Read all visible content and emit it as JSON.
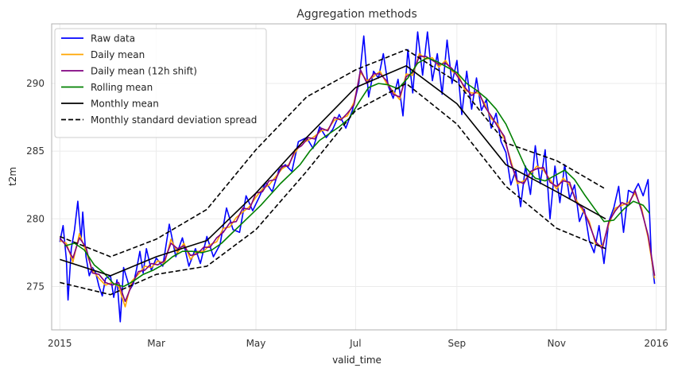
{
  "chart_data": {
    "type": "line",
    "title": "Aggregation methods",
    "xlabel": "valid_time",
    "ylabel": "t2m",
    "xlim": [
      "2014-12-27",
      "2016-01-07"
    ],
    "ylim": [
      271.8,
      294.4
    ],
    "x_ticks": [
      {
        "date": "2015-01-01",
        "label": "2015"
      },
      {
        "date": "2015-03-01",
        "label": "Mar"
      },
      {
        "date": "2015-05-01",
        "label": "May"
      },
      {
        "date": "2015-07-01",
        "label": "Jul"
      },
      {
        "date": "2015-09-01",
        "label": "Sep"
      },
      {
        "date": "2015-11-01",
        "label": "Nov"
      },
      {
        "date": "2016-01-01",
        "label": "2016"
      }
    ],
    "y_ticks": [
      275,
      280,
      285,
      290
    ],
    "grid": true,
    "legend_position": "top-left",
    "series": [
      {
        "name": "Raw data",
        "color": "#0000ff",
        "style": "solid",
        "x": [
          "2015-01-01",
          "2015-01-03",
          "2015-01-05",
          "2015-01-06",
          "2015-01-08",
          "2015-01-10",
          "2015-01-12",
          "2015-01-14",
          "2015-01-15",
          "2015-01-17",
          "2015-01-19",
          "2015-01-21",
          "2015-01-23",
          "2015-01-25",
          "2015-01-27",
          "2015-01-29",
          "2015-02-01",
          "2015-02-03",
          "2015-02-05",
          "2015-02-07",
          "2015-02-09",
          "2015-02-11",
          "2015-02-13",
          "2015-02-15",
          "2015-02-17",
          "2015-02-19",
          "2015-02-21",
          "2015-02-23",
          "2015-02-26",
          "2015-03-01",
          "2015-03-05",
          "2015-03-09",
          "2015-03-13",
          "2015-03-17",
          "2015-03-21",
          "2015-03-25",
          "2015-03-28",
          "2015-04-01",
          "2015-04-05",
          "2015-04-09",
          "2015-04-13",
          "2015-04-17",
          "2015-04-21",
          "2015-04-25",
          "2015-04-29",
          "2015-05-03",
          "2015-05-07",
          "2015-05-11",
          "2015-05-15",
          "2015-05-19",
          "2015-05-23",
          "2015-05-27",
          "2015-06-01",
          "2015-06-05",
          "2015-06-09",
          "2015-06-13",
          "2015-06-17",
          "2015-06-21",
          "2015-06-25",
          "2015-06-29",
          "2015-07-03",
          "2015-07-06",
          "2015-07-09",
          "2015-07-12",
          "2015-07-15",
          "2015-07-18",
          "2015-07-21",
          "2015-07-24",
          "2015-07-27",
          "2015-07-30",
          "2015-08-02",
          "2015-08-05",
          "2015-08-08",
          "2015-08-11",
          "2015-08-14",
          "2015-08-17",
          "2015-08-20",
          "2015-08-23",
          "2015-08-26",
          "2015-08-29",
          "2015-09-01",
          "2015-09-04",
          "2015-09-07",
          "2015-09-10",
          "2015-09-13",
          "2015-09-16",
          "2015-09-19",
          "2015-09-22",
          "2015-09-25",
          "2015-09-28",
          "2015-10-01",
          "2015-10-04",
          "2015-10-07",
          "2015-10-10",
          "2015-10-13",
          "2015-10-16",
          "2015-10-19",
          "2015-10-22",
          "2015-10-25",
          "2015-10-28",
          "2015-10-31",
          "2015-11-03",
          "2015-11-06",
          "2015-11-09",
          "2015-11-12",
          "2015-11-15",
          "2015-11-18",
          "2015-11-21",
          "2015-11-24",
          "2015-11-27",
          "2015-11-30",
          "2015-12-03",
          "2015-12-06",
          "2015-12-09",
          "2015-12-12",
          "2015-12-15",
          "2015-12-18",
          "2015-12-21",
          "2015-12-24",
          "2015-12-27",
          "2015-12-29",
          "2015-12-31"
        ],
        "y": [
          278.3,
          279.5,
          277.0,
          274.0,
          277.8,
          279.2,
          281.3,
          278.4,
          280.5,
          277.2,
          275.8,
          276.4,
          276.0,
          275.0,
          274.3,
          275.6,
          275.8,
          274.2,
          275.5,
          272.4,
          276.4,
          275.6,
          274.8,
          275.2,
          276.3,
          277.6,
          276.0,
          277.8,
          276.2,
          277.1,
          276.5,
          279.6,
          277.2,
          278.6,
          276.5,
          277.8,
          276.7,
          278.7,
          277.2,
          278.1,
          280.8,
          279.2,
          279.0,
          281.7,
          280.6,
          281.6,
          282.7,
          282.0,
          283.6,
          284.0,
          283.5,
          285.7,
          286.0,
          285.2,
          286.8,
          286.0,
          286.6,
          287.7,
          286.7,
          288.0,
          290.0,
          293.5,
          289.0,
          290.9,
          290.4,
          292.2,
          289.8,
          288.9,
          290.3,
          287.6,
          292.5,
          289.3,
          293.8,
          290.6,
          293.8,
          290.2,
          292.2,
          289.2,
          293.2,
          290.0,
          291.7,
          287.7,
          290.9,
          288.1,
          290.4,
          288.0,
          288.8,
          286.7,
          287.8,
          285.7,
          284.9,
          282.5,
          283.6,
          280.9,
          283.9,
          281.8,
          285.4,
          282.6,
          285.1,
          280.0,
          283.9,
          281.2,
          284.0,
          281.5,
          282.5,
          279.8,
          280.7,
          278.4,
          277.5,
          279.5,
          276.7,
          279.8,
          280.8,
          282.4,
          279.0,
          282.1,
          281.9,
          282.6,
          281.7,
          282.9,
          277.2,
          275.2
        ]
      },
      {
        "name": "Daily mean",
        "color": "#ffa500",
        "style": "solid",
        "x": [
          "2015-01-01",
          "2015-01-05",
          "2015-01-09",
          "2015-01-13",
          "2015-01-17",
          "2015-01-21",
          "2015-01-25",
          "2015-01-29",
          "2015-02-02",
          "2015-02-06",
          "2015-02-10",
          "2015-02-14",
          "2015-02-18",
          "2015-02-22",
          "2015-02-26",
          "2015-03-02",
          "2015-03-06",
          "2015-03-10",
          "2015-03-14",
          "2015-03-18",
          "2015-03-22",
          "2015-03-26",
          "2015-03-30",
          "2015-04-03",
          "2015-04-07",
          "2015-04-11",
          "2015-04-15",
          "2015-04-19",
          "2015-04-23",
          "2015-04-27",
          "2015-05-01",
          "2015-05-05",
          "2015-05-09",
          "2015-05-13",
          "2015-05-17",
          "2015-05-21",
          "2015-05-25",
          "2015-05-29",
          "2015-06-02",
          "2015-06-06",
          "2015-06-10",
          "2015-06-14",
          "2015-06-18",
          "2015-06-22",
          "2015-06-26",
          "2015-06-30",
          "2015-07-04",
          "2015-07-08",
          "2015-07-12",
          "2015-07-16",
          "2015-07-20",
          "2015-07-24",
          "2015-07-28",
          "2015-08-01",
          "2015-08-05",
          "2015-08-09",
          "2015-08-13",
          "2015-08-17",
          "2015-08-21",
          "2015-08-25",
          "2015-08-29",
          "2015-09-02",
          "2015-09-06",
          "2015-09-10",
          "2015-09-14",
          "2015-09-18",
          "2015-09-22",
          "2015-09-26",
          "2015-09-30",
          "2015-10-04",
          "2015-10-08",
          "2015-10-12",
          "2015-10-16",
          "2015-10-20",
          "2015-10-24",
          "2015-10-28",
          "2015-11-01",
          "2015-11-05",
          "2015-11-09",
          "2015-11-13",
          "2015-11-17",
          "2015-11-21",
          "2015-11-25",
          "2015-11-29",
          "2015-12-03",
          "2015-12-07",
          "2015-12-11",
          "2015-12-15",
          "2015-12-19",
          "2015-12-23",
          "2015-12-27",
          "2015-12-31"
        ],
        "y": [
          278.4,
          278.2,
          276.8,
          278.9,
          277.6,
          276.2,
          275.6,
          275.1,
          275.3,
          275.0,
          273.5,
          275.4,
          275.9,
          276.5,
          276.4,
          276.9,
          276.7,
          278.5,
          277.5,
          278.2,
          277.0,
          277.6,
          277.6,
          278.1,
          278.3,
          279.3,
          279.4,
          280.1,
          280.5,
          280.9,
          281.6,
          282.2,
          282.5,
          283.1,
          283.7,
          284.0,
          284.9,
          285.6,
          285.8,
          286.1,
          286.5,
          286.6,
          287.3,
          287.4,
          287.6,
          288.6,
          290.8,
          290.2,
          290.5,
          290.9,
          290.0,
          289.4,
          288.8,
          290.7,
          290.6,
          292.2,
          291.8,
          291.9,
          291.2,
          291.7,
          290.9,
          290.6,
          289.5,
          289.3,
          289.3,
          288.5,
          287.4,
          287.0,
          285.9,
          284.3,
          282.6,
          282.8,
          283.3,
          283.9,
          283.6,
          282.9,
          282.2,
          283.0,
          282.5,
          281.4,
          280.6,
          279.8,
          278.1,
          278.0,
          279.6,
          280.8,
          281.0,
          281.2,
          281.9,
          280.8,
          278.6,
          275.6
        ]
      },
      {
        "name": "Daily mean (12h shift)",
        "color": "#800080",
        "style": "solid",
        "x": [
          "2015-01-01",
          "2015-01-05",
          "2015-01-09",
          "2015-01-13",
          "2015-01-17",
          "2015-01-21",
          "2015-01-25",
          "2015-01-29",
          "2015-02-02",
          "2015-02-06",
          "2015-02-10",
          "2015-02-14",
          "2015-02-18",
          "2015-02-22",
          "2015-02-26",
          "2015-03-02",
          "2015-03-06",
          "2015-03-10",
          "2015-03-14",
          "2015-03-18",
          "2015-03-22",
          "2015-03-26",
          "2015-03-30",
          "2015-04-03",
          "2015-04-07",
          "2015-04-11",
          "2015-04-15",
          "2015-04-19",
          "2015-04-23",
          "2015-04-27",
          "2015-05-01",
          "2015-05-05",
          "2015-05-09",
          "2015-05-13",
          "2015-05-17",
          "2015-05-21",
          "2015-05-25",
          "2015-05-29",
          "2015-06-02",
          "2015-06-06",
          "2015-06-10",
          "2015-06-14",
          "2015-06-18",
          "2015-06-22",
          "2015-06-26",
          "2015-06-30",
          "2015-07-04",
          "2015-07-08",
          "2015-07-12",
          "2015-07-16",
          "2015-07-20",
          "2015-07-24",
          "2015-07-28",
          "2015-08-01",
          "2015-08-05",
          "2015-08-09",
          "2015-08-13",
          "2015-08-17",
          "2015-08-21",
          "2015-08-25",
          "2015-08-29",
          "2015-09-02",
          "2015-09-06",
          "2015-09-10",
          "2015-09-14",
          "2015-09-18",
          "2015-09-22",
          "2015-09-26",
          "2015-09-30",
          "2015-10-04",
          "2015-10-08",
          "2015-10-12",
          "2015-10-16",
          "2015-10-20",
          "2015-10-24",
          "2015-10-28",
          "2015-11-01",
          "2015-11-05",
          "2015-11-09",
          "2015-11-13",
          "2015-11-17",
          "2015-11-21",
          "2015-11-25",
          "2015-11-29",
          "2015-12-03",
          "2015-12-07",
          "2015-12-11",
          "2015-12-15",
          "2015-12-19",
          "2015-12-23",
          "2015-12-27",
          "2015-12-31"
        ],
        "y": [
          278.6,
          278.0,
          277.1,
          278.6,
          277.9,
          276.0,
          275.9,
          275.3,
          275.1,
          275.3,
          273.9,
          275.1,
          276.1,
          276.2,
          276.7,
          276.6,
          276.9,
          278.2,
          277.8,
          278.0,
          277.3,
          277.4,
          277.9,
          277.9,
          278.6,
          279.0,
          279.7,
          279.8,
          280.8,
          280.7,
          281.9,
          282.0,
          282.8,
          282.9,
          283.9,
          283.9,
          285.1,
          285.4,
          286.0,
          285.9,
          286.7,
          286.5,
          287.5,
          287.3,
          287.8,
          288.4,
          291.0,
          290.0,
          290.7,
          290.7,
          290.2,
          289.2,
          289.0,
          290.5,
          290.8,
          292.0,
          292.0,
          291.7,
          291.4,
          291.5,
          291.1,
          290.4,
          289.7,
          289.1,
          289.5,
          288.3,
          287.6,
          286.8,
          286.1,
          284.1,
          282.8,
          282.6,
          283.5,
          283.7,
          283.8,
          282.7,
          282.4,
          282.8,
          282.7,
          281.2,
          280.8,
          279.6,
          278.3,
          277.8,
          279.8,
          280.6,
          281.2,
          281.0,
          282.1,
          280.6,
          278.8,
          275.8
        ]
      },
      {
        "name": "Rolling mean",
        "color": "#008000",
        "style": "solid",
        "x": [
          "2015-01-04",
          "2015-01-10",
          "2015-01-16",
          "2015-01-22",
          "2015-01-28",
          "2015-02-03",
          "2015-02-09",
          "2015-02-15",
          "2015-02-21",
          "2015-02-27",
          "2015-03-05",
          "2015-03-11",
          "2015-03-17",
          "2015-03-23",
          "2015-03-29",
          "2015-04-04",
          "2015-04-10",
          "2015-04-16",
          "2015-04-22",
          "2015-04-28",
          "2015-05-04",
          "2015-05-10",
          "2015-05-16",
          "2015-05-22",
          "2015-05-28",
          "2015-06-03",
          "2015-06-09",
          "2015-06-15",
          "2015-06-21",
          "2015-06-27",
          "2015-07-03",
          "2015-07-09",
          "2015-07-15",
          "2015-07-21",
          "2015-07-27",
          "2015-08-02",
          "2015-08-08",
          "2015-08-14",
          "2015-08-20",
          "2015-08-26",
          "2015-09-01",
          "2015-09-07",
          "2015-09-13",
          "2015-09-19",
          "2015-09-25",
          "2015-10-01",
          "2015-10-07",
          "2015-10-13",
          "2015-10-19",
          "2015-10-25",
          "2015-10-31",
          "2015-11-06",
          "2015-11-12",
          "2015-11-18",
          "2015-11-24",
          "2015-11-30",
          "2015-12-06",
          "2015-12-12",
          "2015-12-18",
          "2015-12-24",
          "2015-12-28"
        ],
        "y": [
          278.0,
          278.2,
          277.7,
          276.6,
          276.0,
          275.2,
          275.0,
          275.4,
          275.9,
          276.2,
          276.6,
          277.2,
          277.6,
          277.6,
          277.5,
          277.7,
          278.2,
          278.9,
          279.6,
          280.3,
          281.0,
          281.8,
          282.6,
          283.3,
          284.0,
          285.0,
          285.8,
          286.3,
          286.8,
          287.4,
          288.6,
          289.7,
          290.0,
          289.9,
          289.6,
          290.4,
          291.5,
          291.9,
          291.6,
          291.2,
          290.8,
          290.0,
          289.5,
          288.9,
          288.1,
          287.0,
          285.4,
          283.8,
          283.0,
          282.8,
          283.2,
          283.6,
          282.9,
          281.8,
          280.8,
          279.8,
          279.9,
          280.7,
          281.3,
          281.0,
          280.4
        ]
      },
      {
        "name": "Monthly mean",
        "color": "#000000",
        "style": "solid",
        "x": [
          "2015-01-01",
          "2015-02-01",
          "2015-03-01",
          "2015-04-01",
          "2015-05-01",
          "2015-06-01",
          "2015-07-01",
          "2015-08-01",
          "2015-09-01",
          "2015-10-01",
          "2015-11-01",
          "2015-12-01"
        ],
        "y": [
          277.0,
          275.8,
          277.2,
          278.4,
          281.9,
          286.0,
          289.7,
          291.3,
          288.5,
          284.0,
          282.0,
          280.0
        ]
      },
      {
        "name": "Monthly standard deviation spread",
        "color": "#000000",
        "style": "dashed",
        "segments": [
          {
            "x": [
              "2015-01-01",
              "2015-02-01",
              "2015-03-01",
              "2015-04-01",
              "2015-05-01",
              "2015-06-01",
              "2015-07-01",
              "2015-08-01",
              "2015-09-01",
              "2015-10-01",
              "2015-11-01",
              "2015-12-01"
            ],
            "y": [
              278.7,
              277.2,
              278.5,
              280.7,
              285.1,
              289.0,
              291.0,
              292.5,
              290.1,
              285.6,
              284.3,
              282.2
            ]
          },
          {
            "x": [
              "2015-01-01",
              "2015-02-01",
              "2015-03-01",
              "2015-04-01",
              "2015-05-01",
              "2015-06-01",
              "2015-07-01",
              "2015-08-01",
              "2015-09-01",
              "2015-10-01",
              "2015-11-01",
              "2015-12-01"
            ],
            "y": [
              275.3,
              274.4,
              275.9,
              276.5,
              279.2,
              283.5,
              288.0,
              290.0,
              287.0,
              282.4,
              279.3,
              277.8
            ]
          }
        ]
      }
    ]
  }
}
